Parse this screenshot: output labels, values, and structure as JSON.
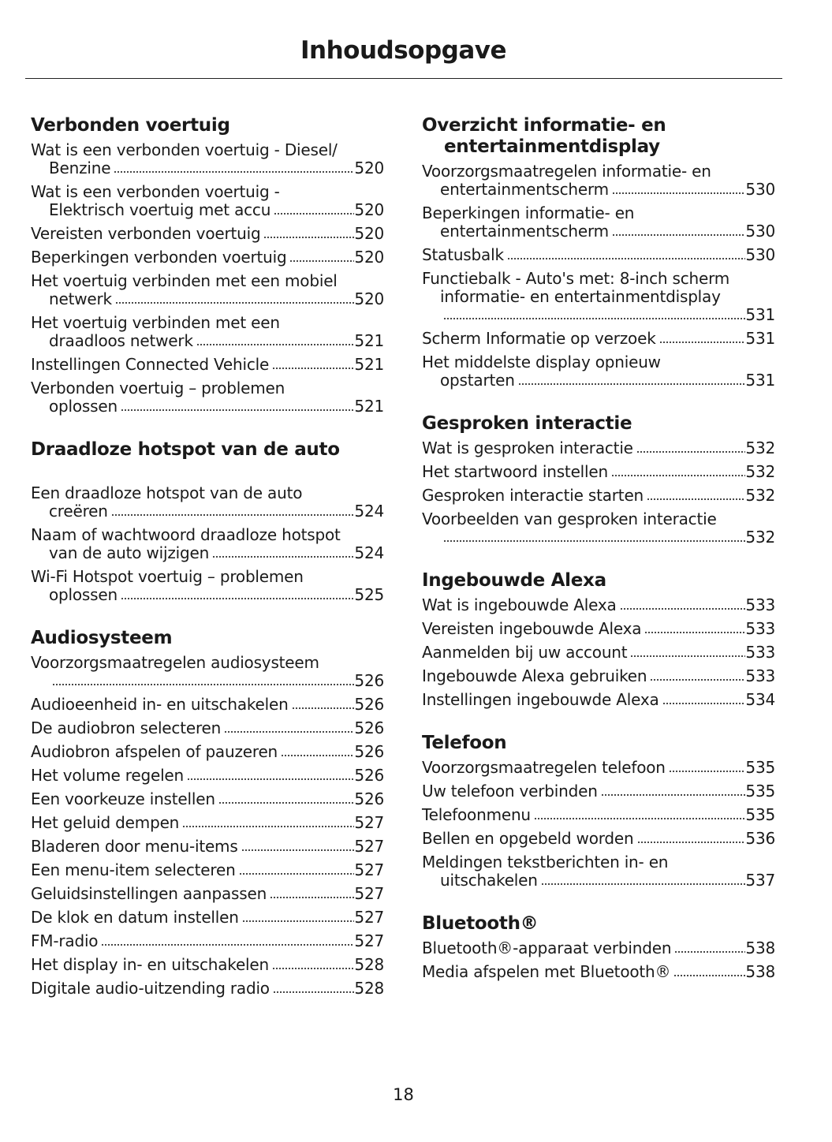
{
  "header": {
    "title": "Inhoudsopgave"
  },
  "page_number": "18",
  "columns": [
    {
      "sections": [
        {
          "title": [
            "Verbonden voertuig"
          ],
          "entries": [
            {
              "lines": [
                "Wat is een verbonden voertuig - Diesel/",
                "Benzine"
              ],
              "page": "520"
            },
            {
              "lines": [
                "Wat is een verbonden voertuig -",
                "Elektrisch voertuig met accu"
              ],
              "page": "520"
            },
            {
              "lines": [
                "Vereisten verbonden voertuig"
              ],
              "page": "520"
            },
            {
              "lines": [
                "Beperkingen verbonden voertuig"
              ],
              "page": "520"
            },
            {
              "lines": [
                "Het voertuig verbinden met een mobiel",
                "netwerk"
              ],
              "page": "520"
            },
            {
              "lines": [
                "Het voertuig verbinden met een",
                "draadloos netwerk"
              ],
              "page": "521"
            },
            {
              "lines": [
                "Instellingen Connected Vehicle"
              ],
              "page": "521"
            },
            {
              "lines": [
                "Verbonden voertuig – problemen",
                "oplossen"
              ],
              "page": "521"
            }
          ]
        },
        {
          "title": [
            "Draadloze hotspot van de auto"
          ],
          "gap": true,
          "entries": [
            {
              "lines": [
                "Een draadloze hotspot van de auto",
                "creëren"
              ],
              "page": "524"
            },
            {
              "lines": [
                "Naam of wachtwoord draadloze hotspot",
                "van de auto wijzigen"
              ],
              "page": "524"
            },
            {
              "lines": [
                "Wi-Fi Hotspot voertuig – problemen",
                "oplossen"
              ],
              "page": "525"
            }
          ]
        },
        {
          "title": [
            "Audiosysteem"
          ],
          "entries": [
            {
              "lines": [
                "Voorzorgsmaatregelen audiosysteem",
                ""
              ],
              "page": "526"
            },
            {
              "lines": [
                "Audioeenheid in- en uitschakelen"
              ],
              "page": "526"
            },
            {
              "lines": [
                "De audiobron selecteren"
              ],
              "page": "526"
            },
            {
              "lines": [
                "Audiobron afspelen of pauzeren"
              ],
              "page": "526"
            },
            {
              "lines": [
                "Het volume regelen"
              ],
              "page": "526"
            },
            {
              "lines": [
                "Een voorkeuze instellen"
              ],
              "page": "526"
            },
            {
              "lines": [
                "Het geluid dempen"
              ],
              "page": "527"
            },
            {
              "lines": [
                "Bladeren door menu-items"
              ],
              "page": "527"
            },
            {
              "lines": [
                "Een menu-item selecteren"
              ],
              "page": "527"
            },
            {
              "lines": [
                "Geluidsinstellingen aanpassen"
              ],
              "page": "527"
            },
            {
              "lines": [
                "De klok en datum instellen"
              ],
              "page": "527"
            },
            {
              "lines": [
                "FM-radio"
              ],
              "page": "527"
            },
            {
              "lines": [
                "Het display in- en uitschakelen"
              ],
              "page": "528"
            },
            {
              "lines": [
                "Digitale audio-uitzending radio"
              ],
              "page": "528"
            }
          ]
        }
      ]
    },
    {
      "sections": [
        {
          "title": [
            "Overzicht informatie- en",
            "entertainmentdisplay"
          ],
          "entries": [
            {
              "lines": [
                "Voorzorgsmaatregelen informatie- en",
                "entertainmentscherm"
              ],
              "page": "530"
            },
            {
              "lines": [
                "Beperkingen informatie- en",
                "entertainmentscherm"
              ],
              "page": "530"
            },
            {
              "lines": [
                "Statusbalk"
              ],
              "page": "530"
            },
            {
              "lines": [
                "Functiebalk - Auto's met: 8-inch scherm",
                "informatie- en entertainmentdisplay",
                ""
              ],
              "page": "531"
            },
            {
              "lines": [
                "Scherm Informatie op verzoek"
              ],
              "page": "531"
            },
            {
              "lines": [
                "Het middelste display opnieuw",
                "opstarten"
              ],
              "page": "531"
            }
          ]
        },
        {
          "title": [
            "Gesproken interactie"
          ],
          "entries": [
            {
              "lines": [
                "Wat is gesproken interactie"
              ],
              "page": "532"
            },
            {
              "lines": [
                "Het startwoord instellen"
              ],
              "page": "532"
            },
            {
              "lines": [
                "Gesproken interactie starten"
              ],
              "page": "532"
            },
            {
              "lines": [
                "Voorbeelden van gesproken interactie",
                ""
              ],
              "page": "532"
            }
          ]
        },
        {
          "title": [
            "Ingebouwde Alexa"
          ],
          "entries": [
            {
              "lines": [
                "Wat is ingebouwde Alexa"
              ],
              "page": "533"
            },
            {
              "lines": [
                "Vereisten ingebouwde Alexa"
              ],
              "page": "533"
            },
            {
              "lines": [
                "Aanmelden bij uw account"
              ],
              "page": "533"
            },
            {
              "lines": [
                "Ingebouwde Alexa gebruiken"
              ],
              "page": "533"
            },
            {
              "lines": [
                "Instellingen ingebouwde Alexa"
              ],
              "page": "534"
            }
          ]
        },
        {
          "title": [
            "Telefoon"
          ],
          "entries": [
            {
              "lines": [
                "Voorzorgsmaatregelen telefoon"
              ],
              "page": "535"
            },
            {
              "lines": [
                "Uw telefoon verbinden"
              ],
              "page": "535"
            },
            {
              "lines": [
                "Telefoonmenu"
              ],
              "page": "535"
            },
            {
              "lines": [
                "Bellen en opgebeld worden"
              ],
              "page": "536"
            },
            {
              "lines": [
                "Meldingen tekstberichten in- en",
                "uitschakelen"
              ],
              "page": "537"
            }
          ]
        },
        {
          "title": [
            "Bluetooth®"
          ],
          "entries": [
            {
              "lines": [
                "Bluetooth®-apparaat verbinden"
              ],
              "page": "538"
            },
            {
              "lines": [
                "Media afspelen met Bluetooth®"
              ],
              "page": "538"
            }
          ]
        }
      ]
    }
  ]
}
